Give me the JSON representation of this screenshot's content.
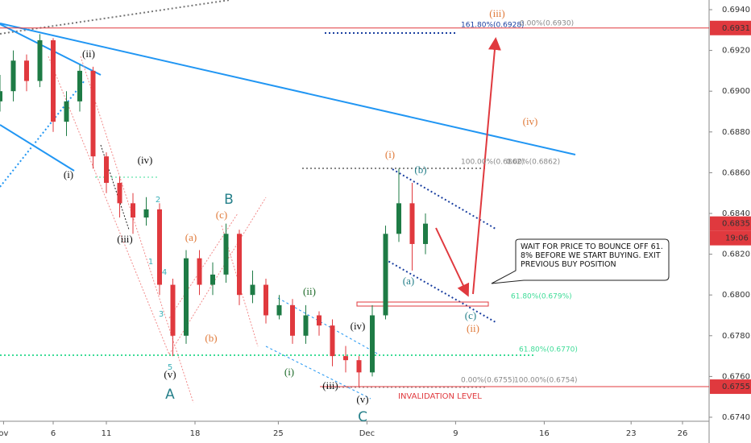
{
  "chart_data": {
    "type": "candlestick",
    "xlim": [
      0,
      40
    ],
    "ylim": [
      0.674,
      0.694
    ],
    "xticks": [
      {
        "value": 0.2,
        "label": "ov"
      },
      {
        "value": 3,
        "label": "6"
      },
      {
        "value": 6,
        "label": "11"
      },
      {
        "value": 11,
        "label": "18"
      },
      {
        "value": 15.7,
        "label": "25"
      },
      {
        "value": 20.7,
        "label": "Dec"
      },
      {
        "value": 25.7,
        "label": "9"
      },
      {
        "value": 30.7,
        "label": "16"
      },
      {
        "value": 35.6,
        "label": "23"
      },
      {
        "value": 38.5,
        "label": "26"
      }
    ],
    "yticks": [
      {
        "value": 0.694,
        "label": "0.6940"
      },
      {
        "value": 0.692,
        "label": "0.6920"
      },
      {
        "value": 0.69,
        "label": "0.6900"
      },
      {
        "value": 0.688,
        "label": "0.6880"
      },
      {
        "value": 0.686,
        "label": "0.6860"
      },
      {
        "value": 0.684,
        "label": "0.6840"
      },
      {
        "value": 0.682,
        "label": "0.6820"
      },
      {
        "value": 0.68,
        "label": "0.6800"
      },
      {
        "value": 0.678,
        "label": "0.6780"
      },
      {
        "value": 0.676,
        "label": "0.6760"
      },
      {
        "value": 0.674,
        "label": "0.6740"
      }
    ],
    "up_color": "#1e7b45",
    "down_color": "#e0393e",
    "candles": {
      "x": [
        0,
        0.75,
        1.5,
        2.25,
        3,
        3.75,
        4.5,
        5.25,
        6,
        6.75,
        7.5,
        8.25,
        9,
        9.75,
        10.5,
        11.25,
        12,
        12.75,
        13.5,
        14.25,
        15,
        15.75,
        16.5,
        17.25,
        18,
        18.75,
        19.5,
        20.25,
        21,
        21.75,
        22.5,
        23.25,
        24
      ],
      "open": [
        0.6895,
        0.69,
        0.6915,
        0.6905,
        0.6925,
        0.6885,
        0.6895,
        0.691,
        0.6868,
        0.6855,
        0.6845,
        0.6838,
        0.6842,
        0.6805,
        0.678,
        0.6818,
        0.6805,
        0.681,
        0.683,
        0.68,
        0.6805,
        0.679,
        0.6795,
        0.678,
        0.679,
        0.6785,
        0.677,
        0.6768,
        0.6762,
        0.679,
        0.683,
        0.6845,
        0.6825
      ],
      "high": [
        0.6908,
        0.692,
        0.6918,
        0.6928,
        0.6926,
        0.69,
        0.6913,
        0.6912,
        0.687,
        0.6858,
        0.685,
        0.6848,
        0.6845,
        0.6808,
        0.6822,
        0.6822,
        0.6816,
        0.6835,
        0.6832,
        0.6812,
        0.6808,
        0.68,
        0.6798,
        0.6795,
        0.6792,
        0.6788,
        0.6775,
        0.677,
        0.6795,
        0.6834,
        0.6862,
        0.6855,
        0.684
      ],
      "low": [
        0.689,
        0.6895,
        0.69,
        0.6902,
        0.688,
        0.6878,
        0.689,
        0.6862,
        0.685,
        0.6838,
        0.683,
        0.6834,
        0.68,
        0.677,
        0.6776,
        0.68,
        0.68,
        0.6806,
        0.6795,
        0.6796,
        0.6786,
        0.6788,
        0.6776,
        0.6776,
        0.678,
        0.6765,
        0.6762,
        0.6755,
        0.676,
        0.6788,
        0.6826,
        0.6812,
        0.682
      ],
      "close": [
        0.69,
        0.6915,
        0.6905,
        0.6925,
        0.6885,
        0.6895,
        0.691,
        0.6868,
        0.6855,
        0.6845,
        0.6838,
        0.6842,
        0.6805,
        0.678,
        0.6818,
        0.6805,
        0.681,
        0.683,
        0.68,
        0.6805,
        0.679,
        0.6795,
        0.678,
        0.679,
        0.6785,
        0.677,
        0.6768,
        0.6762,
        0.679,
        0.683,
        0.6845,
        0.6825,
        0.6835
      ]
    },
    "price_tags": [
      0.6931,
      0.6835,
      0.6755
    ],
    "time_tag": "19:06",
    "fib_labels": [
      "161.80%(0.6928)",
      "0.00%(0.6930)",
      "100.00%(0.6862)",
      "0.00%(0.6862)",
      "61.80%(0.679%)",
      "61.80%(0.6770)",
      "0.00%(0.6755)",
      "100.00%(0.6754)"
    ],
    "invalidation": "INVALIDATION LEVEL",
    "note": "WAIT FOR PRICE TO BOUNCE OFF 61. 8% BEFORE WE START BUYING. EXIT PREVIOUS BUY POSITION",
    "wave_labels": [
      "(iii)",
      "(iv)",
      "(ii)",
      "(i)",
      "(iv)",
      "(iii)",
      "(v)",
      "A",
      "5",
      "2",
      "1",
      "4",
      "3",
      "B",
      "(a)",
      "(c)",
      "(b)",
      "(ii)",
      "(i)",
      "(iv)",
      "(iii)",
      "(v)",
      "C",
      "(i)",
      "(b)",
      "(a)",
      "(c)",
      "(ii)"
    ]
  }
}
